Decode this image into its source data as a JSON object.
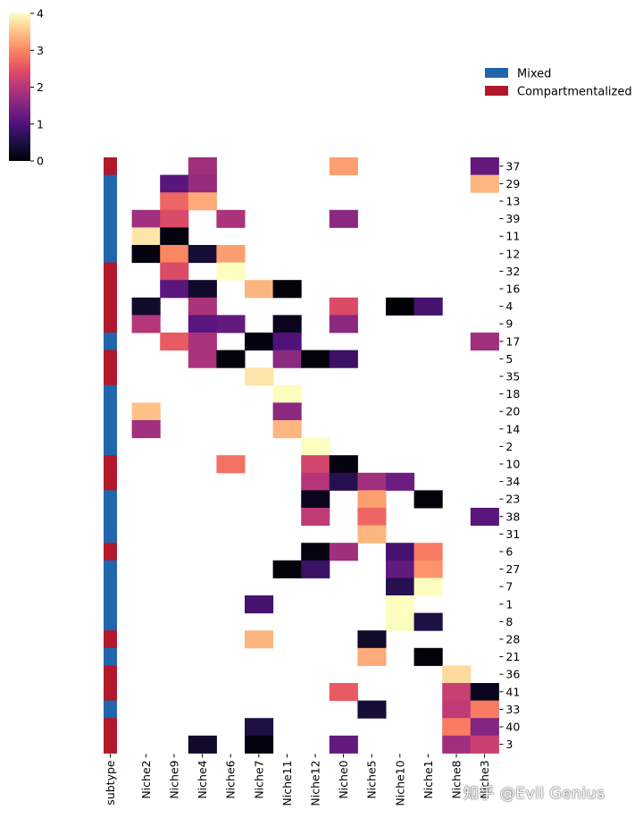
{
  "chart_data": {
    "type": "heatmap",
    "title": "",
    "colormap": "magma",
    "colorbar": {
      "min": 0,
      "max": 4,
      "ticks": [
        "0",
        "1",
        "2",
        "3",
        "4"
      ]
    },
    "columns": [
      "subtype",
      "Niche2",
      "Niche9",
      "Niche4",
      "Niche6",
      "Niche7",
      "Niche11",
      "Niche12",
      "Niche0",
      "Niche5",
      "Niche10",
      "Niche1",
      "Niche8",
      "Niche3"
    ],
    "niche_columns": [
      "Niche2",
      "Niche9",
      "Niche4",
      "Niche6",
      "Niche7",
      "Niche11",
      "Niche12",
      "Niche0",
      "Niche5",
      "Niche10",
      "Niche1",
      "Niche8",
      "Niche3"
    ],
    "rows": [
      "37",
      "29",
      "13",
      "39",
      "11",
      "12",
      "32",
      "16",
      "4",
      "9",
      "17",
      "5",
      "35",
      "18",
      "20",
      "14",
      "2",
      "10",
      "34",
      "23",
      "38",
      "31",
      "6",
      "27",
      "7",
      "1",
      "8",
      "28",
      "21",
      "36",
      "41",
      "33",
      "40",
      "3"
    ],
    "subtypes": [
      "C",
      "M",
      "M",
      "M",
      "M",
      "M",
      "C",
      "C",
      "C",
      "C",
      "M",
      "C",
      "C",
      "M",
      "M",
      "M",
      "M",
      "C",
      "C",
      "M",
      "M",
      "M",
      "C",
      "M",
      "M",
      "M",
      "M",
      "C",
      "M",
      "C",
      "C",
      "M",
      "C",
      "C"
    ],
    "values": [
      [
        null,
        null,
        1.8,
        null,
        null,
        null,
        null,
        3.2,
        null,
        null,
        null,
        null,
        1.2
      ],
      [
        null,
        1.1,
        1.7,
        null,
        null,
        null,
        null,
        null,
        null,
        null,
        null,
        null,
        3.4
      ],
      [
        null,
        2.7,
        3.3,
        null,
        null,
        null,
        null,
        null,
        null,
        null,
        null,
        null,
        null
      ],
      [
        1.8,
        2.4,
        null,
        1.9,
        null,
        null,
        null,
        1.6,
        null,
        null,
        null,
        null,
        null
      ],
      [
        3.8,
        0.1,
        null,
        null,
        null,
        null,
        null,
        null,
        null,
        null,
        null,
        null,
        null
      ],
      [
        0.1,
        3.0,
        0.4,
        3.2,
        null,
        null,
        null,
        null,
        null,
        null,
        null,
        null,
        null
      ],
      [
        null,
        2.4,
        null,
        4.0,
        null,
        null,
        null,
        null,
        null,
        null,
        null,
        null,
        null
      ],
      [
        null,
        1.1,
        0.3,
        null,
        3.4,
        0.05,
        null,
        null,
        null,
        null,
        null,
        null,
        null
      ],
      [
        0.3,
        null,
        1.9,
        null,
        null,
        null,
        null,
        2.4,
        null,
        0.0,
        0.9,
        null,
        null
      ],
      [
        2.0,
        null,
        1.1,
        1.2,
        null,
        0.2,
        null,
        1.6,
        null,
        null,
        null,
        null,
        null
      ],
      [
        null,
        2.6,
        1.9,
        null,
        0.1,
        1.0,
        null,
        null,
        null,
        null,
        null,
        null,
        1.8
      ],
      [
        null,
        null,
        1.9,
        0.05,
        null,
        1.6,
        0.05,
        0.8,
        null,
        null,
        null,
        null,
        null
      ],
      [
        null,
        null,
        null,
        null,
        3.8,
        null,
        null,
        null,
        null,
        null,
        null,
        null,
        null
      ],
      [
        null,
        null,
        null,
        null,
        null,
        4.0,
        null,
        null,
        null,
        null,
        null,
        null,
        null
      ],
      [
        3.5,
        null,
        null,
        null,
        null,
        1.6,
        null,
        null,
        null,
        null,
        null,
        null,
        null
      ],
      [
        1.8,
        null,
        null,
        null,
        null,
        3.4,
        null,
        null,
        null,
        null,
        null,
        null,
        null
      ],
      [
        null,
        null,
        null,
        null,
        null,
        null,
        4.0,
        null,
        null,
        null,
        null,
        null,
        null
      ],
      [
        null,
        null,
        null,
        2.8,
        null,
        null,
        2.3,
        0.1,
        null,
        null,
        null,
        null,
        null
      ],
      [
        null,
        null,
        null,
        null,
        null,
        null,
        2.0,
        0.6,
        1.8,
        1.3,
        null,
        null,
        null
      ],
      [
        null,
        null,
        null,
        null,
        null,
        null,
        0.2,
        null,
        3.2,
        null,
        0.05,
        null,
        null
      ],
      [
        null,
        null,
        null,
        null,
        null,
        null,
        2.1,
        null,
        2.7,
        null,
        null,
        null,
        1.1
      ],
      [
        null,
        null,
        null,
        null,
        null,
        null,
        null,
        null,
        3.4,
        null,
        null,
        null,
        null
      ],
      [
        null,
        null,
        null,
        null,
        null,
        null,
        0.1,
        1.8,
        null,
        0.9,
        2.9,
        null,
        null
      ],
      [
        null,
        null,
        null,
        null,
        null,
        0.05,
        0.8,
        null,
        null,
        1.2,
        3.1,
        null,
        null
      ],
      [
        null,
        null,
        null,
        null,
        null,
        null,
        null,
        null,
        null,
        0.6,
        4.0,
        null,
        null
      ],
      [
        null,
        null,
        null,
        null,
        0.9,
        null,
        null,
        null,
        null,
        4.0,
        null,
        null,
        null
      ],
      [
        null,
        null,
        null,
        null,
        null,
        null,
        null,
        null,
        null,
        4.0,
        0.5,
        null,
        null
      ],
      [
        null,
        null,
        null,
        null,
        3.4,
        null,
        null,
        null,
        0.3,
        null,
        null,
        null,
        null
      ],
      [
        null,
        null,
        null,
        null,
        null,
        null,
        null,
        null,
        3.3,
        null,
        0.05,
        null,
        null
      ],
      [
        null,
        null,
        null,
        null,
        null,
        null,
        null,
        null,
        null,
        null,
        null,
        3.7,
        null
      ],
      [
        null,
        null,
        null,
        null,
        null,
        null,
        null,
        2.6,
        null,
        null,
        null,
        2.2,
        0.2
      ],
      [
        null,
        null,
        null,
        null,
        null,
        null,
        null,
        null,
        0.4,
        null,
        null,
        2.1,
        2.9
      ],
      [
        null,
        null,
        null,
        null,
        0.5,
        null,
        null,
        null,
        null,
        null,
        null,
        2.9,
        1.5
      ],
      [
        null,
        null,
        0.3,
        null,
        0.1,
        null,
        null,
        1.2,
        null,
        null,
        null,
        1.8,
        2.2
      ]
    ],
    "legend": [
      {
        "key": "M",
        "label": "Mixed",
        "color": "#2166ac"
      },
      {
        "key": "C",
        "label": "Compartmentalized",
        "color": "#b2182b"
      }
    ],
    "legend_position": "top-right"
  },
  "watermark": "知乎 @Evil Genius"
}
